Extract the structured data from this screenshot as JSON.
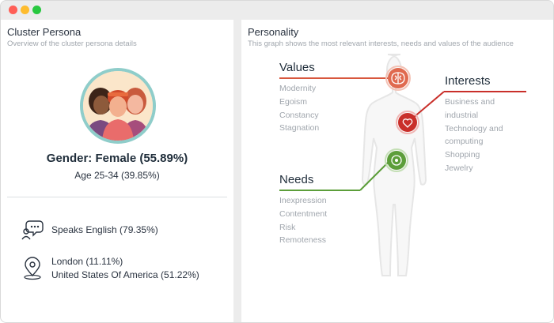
{
  "window": {
    "controls": [
      "close",
      "minimize",
      "maximize"
    ]
  },
  "left_panel": {
    "title": "Cluster Persona",
    "subtitle": "Overview of the cluster persona details",
    "gender": "Gender: Female (55.89%)",
    "age": "Age 25-34 (39.85%)",
    "language": {
      "icon": "speech-bubble-icon",
      "text": "Speaks English (79.35%)"
    },
    "location": {
      "icon": "location-pin-icon",
      "line1": "London (11.11%)",
      "line2": "United States Of America (51.22%)"
    }
  },
  "right_panel": {
    "title": "Personality",
    "subtitle": "This graph shows the most relevant interests, needs and values of the audience",
    "values": {
      "title": "Values",
      "items": [
        "Modernity",
        "Egoism",
        "Constancy",
        "Stagnation"
      ],
      "color": "#d8573d"
    },
    "interests": {
      "title": "Interests",
      "items": [
        "Business and industrial",
        "Technology and computing",
        "Shopping",
        "Jewelry"
      ],
      "color": "#c92f2a"
    },
    "needs": {
      "title": "Needs",
      "items": [
        "Inexpression",
        "Contentment",
        "Risk",
        "Remoteness"
      ],
      "color": "#5c9e3a"
    }
  }
}
